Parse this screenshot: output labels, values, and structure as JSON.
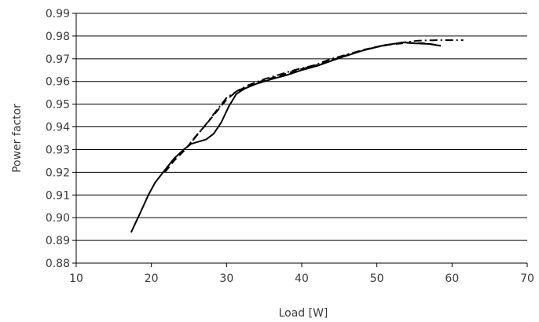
{
  "chart_data": {
    "type": "line",
    "title": "",
    "xlabel": "Load [W]",
    "ylabel": "Power factor",
    "xlim": [
      10,
      70
    ],
    "ylim": [
      0.88,
      0.99
    ],
    "x_ticks": [
      10,
      20,
      30,
      40,
      50,
      60,
      70
    ],
    "y_ticks": [
      0.88,
      0.89,
      0.9,
      0.91,
      0.92,
      0.93,
      0.94,
      0.95,
      0.96,
      0.97,
      0.98,
      0.99
    ],
    "x_tick_labels": [
      "10",
      "20",
      "30",
      "40",
      "50",
      "60",
      "70"
    ],
    "y_tick_labels": [
      "0.88",
      "0.89",
      "0.90",
      "0.91",
      "0.92",
      "0.93",
      "0.94",
      "0.95",
      "0.96",
      "0.97",
      "0.98",
      "0.99"
    ],
    "grid": {
      "horizontal": true,
      "vertical": false
    },
    "legend": "none",
    "series": [
      {
        "style": "solid",
        "points": [
          [
            17.3,
            0.8935
          ],
          [
            18.5,
            0.902
          ],
          [
            19.6,
            0.91
          ],
          [
            20.5,
            0.9155
          ],
          [
            21.8,
            0.921
          ],
          [
            23.0,
            0.926
          ],
          [
            24.3,
            0.93
          ],
          [
            25.3,
            0.9325
          ],
          [
            26.3,
            0.9335
          ],
          [
            27.3,
            0.9345
          ],
          [
            28.3,
            0.937
          ],
          [
            29.3,
            0.942
          ],
          [
            30.3,
            0.949
          ],
          [
            31.3,
            0.9545
          ],
          [
            32.5,
            0.957
          ],
          [
            34.0,
            0.959
          ],
          [
            36.0,
            0.961
          ],
          [
            38.0,
            0.9628
          ],
          [
            40.0,
            0.965
          ],
          [
            42.0,
            0.9668
          ],
          [
            45.0,
            0.9703
          ],
          [
            48.0,
            0.9735
          ],
          [
            51.0,
            0.976
          ],
          [
            53.5,
            0.9772
          ],
          [
            55.0,
            0.9768
          ],
          [
            57.0,
            0.9765
          ],
          [
            58.5,
            0.9757
          ]
        ]
      },
      {
        "style": "dashed",
        "points": [
          [
            21.8,
            0.92
          ],
          [
            23.0,
            0.925
          ],
          [
            24.5,
            0.93
          ],
          [
            25.8,
            0.9355
          ],
          [
            27.0,
            0.94
          ],
          [
            28.5,
            0.946
          ],
          [
            30.0,
            0.952
          ],
          [
            31.3,
            0.9555
          ],
          [
            32.5,
            0.9575
          ],
          [
            34.0,
            0.9595
          ],
          [
            36.0,
            0.9615
          ],
          [
            38.0,
            0.9635
          ],
          [
            40.0,
            0.9655
          ],
          [
            42.0,
            0.9672
          ],
          [
            45.0,
            0.9705
          ],
          [
            48.0,
            0.9738
          ],
          [
            51.0,
            0.976
          ],
          [
            54.0,
            0.977
          ],
          [
            56.5,
            0.9768
          ],
          [
            58.5,
            0.9758
          ]
        ]
      },
      {
        "style": "dash-dot",
        "points": [
          [
            25.5,
            0.934
          ],
          [
            27.0,
            0.94
          ],
          [
            28.5,
            0.9465
          ],
          [
            30.0,
            0.9528
          ],
          [
            31.5,
            0.956
          ],
          [
            33.0,
            0.9585
          ],
          [
            35.0,
            0.961
          ],
          [
            37.0,
            0.963
          ],
          [
            39.0,
            0.965
          ],
          [
            41.5,
            0.967
          ],
          [
            44.0,
            0.97
          ],
          [
            47.0,
            0.9728
          ],
          [
            50.0,
            0.9752
          ],
          [
            53.0,
            0.977
          ],
          [
            55.5,
            0.978
          ],
          [
            58.0,
            0.9782
          ],
          [
            61.5,
            0.9782
          ]
        ]
      }
    ]
  }
}
